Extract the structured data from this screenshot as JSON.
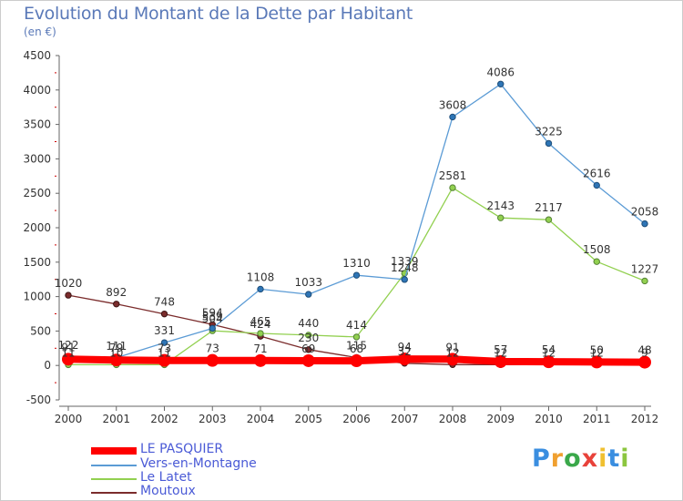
{
  "title": "Evolution du Montant de la Dette par Habitant",
  "subtitle": "(en €)",
  "brand": {
    "text": "Proxiti",
    "letter_colors": [
      "#3a8ee0",
      "#f0a030",
      "#3aa84a",
      "#e8423a",
      "#f0c030",
      "#3a8ee0",
      "#8cc63f"
    ]
  },
  "chart_data": {
    "type": "line",
    "title": "Evolution du Montant de la Dette par Habitant",
    "subtitle": "(en €)",
    "xlabel": "",
    "ylabel": "",
    "x": [
      "2000",
      "2001",
      "2002",
      "2003",
      "2004",
      "2005",
      "2006",
      "2007",
      "2008",
      "2009",
      "2010",
      "2011",
      "2012"
    ],
    "ylim": [
      -500,
      4500
    ],
    "yticks": [
      -500,
      0,
      500,
      1000,
      1500,
      2000,
      2500,
      3000,
      3500,
      4000,
      4500
    ],
    "grid": false,
    "legend_position": "bottom-left",
    "series": [
      {
        "name": "LE PASQUIER",
        "color": "#ff0000",
        "values": [
          91,
          79,
          73,
          73,
          71,
          69,
          68,
          94,
          91,
          57,
          54,
          50,
          48
        ]
      },
      {
        "name": "Vers-en-Montagne",
        "color": "#5b9bd5",
        "values": [
          122,
          111,
          331,
          539,
          1108,
          1033,
          1310,
          1248,
          3608,
          4086,
          3225,
          2616,
          2058
        ]
      },
      {
        "name": "Le Latet",
        "color": "#92d050",
        "values": [
          11,
          10,
          11,
          504,
          465,
          440,
          414,
          1339,
          2581,
          2143,
          2117,
          1508,
          1227
        ]
      },
      {
        "name": "Moutoux",
        "color": "#7b2c2c",
        "values": [
          1020,
          892,
          748,
          594,
          424,
          230,
          115,
          32,
          12,
          12,
          12,
          12,
          9
        ]
      }
    ]
  }
}
